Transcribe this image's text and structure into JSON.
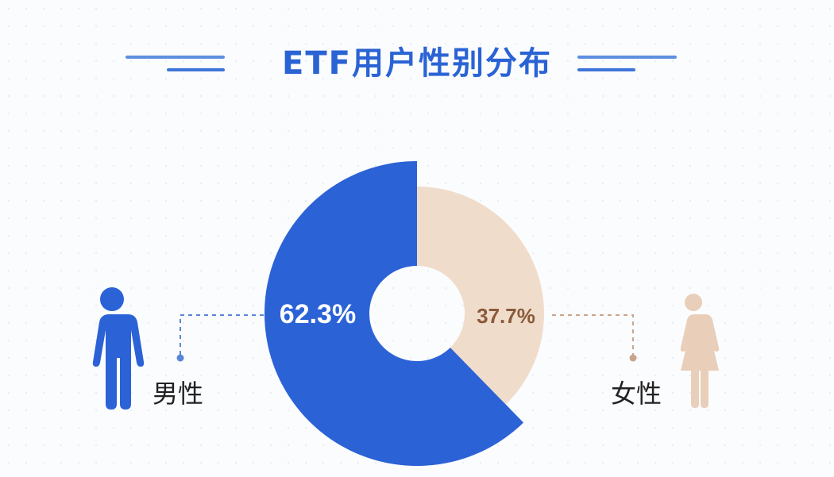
{
  "title": "ETF用户性别分布",
  "colors": {
    "title": "#2a63d4",
    "male": "#2b62d6",
    "female": "#f0dccb",
    "female_text": "#8a5a3a",
    "male_icon": "#2b62d6",
    "female_icon": "#e9cfba",
    "male_leader": "#5a86d8",
    "female_leader": "#c9a48a"
  },
  "chart_data": {
    "type": "pie",
    "categories": [
      "男性",
      "女性"
    ],
    "values": [
      62.3,
      37.7
    ],
    "value_labels": [
      "62.3%",
      "37.7%"
    ],
    "title": "ETF用户性别分布",
    "donut": true,
    "legend": "icons-beside-slices"
  },
  "icons": {
    "male": "male-person-icon",
    "female": "female-person-icon"
  },
  "labels": {
    "male": "男性",
    "female": "女性"
  }
}
